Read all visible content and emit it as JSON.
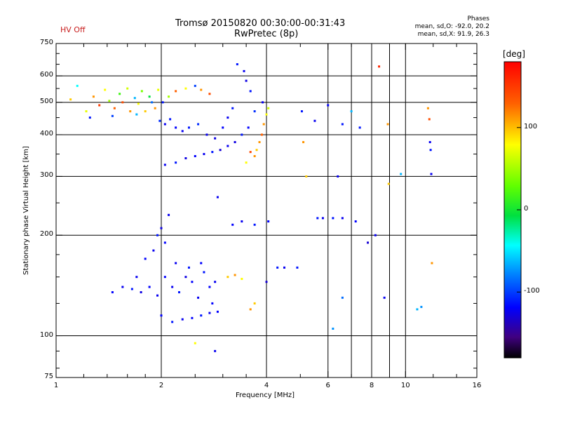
{
  "header": {
    "status": "HV Off",
    "status_color": "#c81e1e",
    "title_line1": "Tromsø 20150820 00:30:00-00:31:43",
    "title_line2": "RwPretec (8p)",
    "stats_title": "Phases",
    "stats_line1": "mean, sd,O: -92.0, 20.2",
    "stats_line2": "mean, sd,X:  91.9, 26.3"
  },
  "chart_data": {
    "type": "scatter",
    "xlabel": "Frequency [MHz]",
    "ylabel": "Stationary phase Virtual Height [km]",
    "x_scale": "log",
    "y_scale": "log",
    "xlim": [
      1,
      16
    ],
    "ylim": [
      75,
      750
    ],
    "x_ticks": [
      1,
      2,
      4,
      6,
      8,
      10,
      16
    ],
    "x_tick_labels": [
      "1",
      "2",
      "4",
      "6",
      "8",
      "10",
      "16"
    ],
    "y_ticks": [
      75,
      100,
      200,
      300,
      400,
      500,
      600,
      750
    ],
    "y_tick_labels": [
      "75",
      "100",
      "200",
      "300",
      "400",
      "500",
      "600",
      "750"
    ],
    "x_gridlines": [
      2,
      4,
      6,
      7,
      8,
      9,
      10
    ],
    "y_gridlines": [
      100,
      200,
      300,
      400,
      500,
      600
    ],
    "grid": true,
    "colorbar": {
      "label": "[deg]",
      "range": [
        -180,
        180
      ],
      "ticks": [
        100,
        0,
        -100
      ],
      "tick_labels": [
        "100",
        "0",
        "-100"
      ]
    },
    "points": [
      [
        1.1,
        510,
        110
      ],
      [
        1.15,
        560,
        -40
      ],
      [
        1.22,
        470,
        90
      ],
      [
        1.28,
        520,
        120
      ],
      [
        1.33,
        490,
        150
      ],
      [
        1.38,
        545,
        100
      ],
      [
        1.42,
        505,
        60
      ],
      [
        1.47,
        480,
        130
      ],
      [
        1.52,
        530,
        20
      ],
      [
        1.55,
        500,
        140
      ],
      [
        1.6,
        550,
        80
      ],
      [
        1.63,
        470,
        120
      ],
      [
        1.68,
        515,
        -60
      ],
      [
        1.72,
        495,
        100
      ],
      [
        1.76,
        540,
        40
      ],
      [
        1.8,
        470,
        110
      ],
      [
        1.85,
        520,
        0
      ],
      [
        1.88,
        500,
        -80
      ],
      [
        1.92,
        480,
        120
      ],
      [
        1.96,
        545,
        90
      ],
      [
        2.02,
        500,
        -100
      ],
      [
        2.1,
        520,
        60
      ],
      [
        2.2,
        540,
        130
      ],
      [
        2.35,
        550,
        100
      ],
      [
        2.5,
        560,
        -90
      ],
      [
        2.6,
        545,
        120
      ],
      [
        2.75,
        530,
        140
      ],
      [
        1.25,
        450,
        -100
      ],
      [
        1.45,
        455,
        -90
      ],
      [
        1.7,
        460,
        -60
      ],
      [
        1.98,
        440,
        -95
      ],
      [
        2.05,
        430,
        -110
      ],
      [
        2.12,
        445,
        -100
      ],
      [
        2.2,
        420,
        -105
      ],
      [
        2.3,
        410,
        -110
      ],
      [
        2.4,
        420,
        -100
      ],
      [
        2.55,
        430,
        -95
      ],
      [
        2.7,
        400,
        -110
      ],
      [
        2.85,
        390,
        -115
      ],
      [
        3.0,
        420,
        -105
      ],
      [
        3.1,
        450,
        -110
      ],
      [
        3.2,
        480,
        -100
      ],
      [
        2.05,
        325,
        -110
      ],
      [
        2.2,
        330,
        -100
      ],
      [
        2.35,
        340,
        -115
      ],
      [
        2.5,
        345,
        -105
      ],
      [
        2.65,
        350,
        -110
      ],
      [
        2.8,
        355,
        -100
      ],
      [
        2.95,
        360,
        -120
      ],
      [
        3.1,
        370,
        -110
      ],
      [
        3.25,
        380,
        -115
      ],
      [
        3.4,
        400,
        -100
      ],
      [
        3.55,
        420,
        -105
      ],
      [
        3.7,
        470,
        -95
      ],
      [
        3.9,
        500,
        -110
      ],
      [
        3.6,
        540,
        -100
      ],
      [
        3.5,
        580,
        -115
      ],
      [
        3.45,
        620,
        -110
      ],
      [
        3.3,
        650,
        -100
      ],
      [
        3.75,
        360,
        110
      ],
      [
        3.82,
        380,
        120
      ],
      [
        3.88,
        400,
        130
      ],
      [
        3.93,
        430,
        120
      ],
      [
        4.0,
        460,
        100
      ],
      [
        4.05,
        480,
        80
      ],
      [
        3.6,
        355,
        140
      ],
      [
        3.7,
        345,
        120
      ],
      [
        3.5,
        330,
        100
      ],
      [
        5.1,
        380,
        120
      ],
      [
        5.2,
        300,
        110
      ],
      [
        6.4,
        300,
        -110
      ],
      [
        8.4,
        640,
        160
      ],
      [
        8.9,
        430,
        120
      ],
      [
        8.95,
        285,
        110
      ],
      [
        9.7,
        305,
        -60
      ],
      [
        11.6,
        480,
        120
      ],
      [
        11.7,
        445,
        140
      ],
      [
        11.75,
        380,
        -110
      ],
      [
        11.8,
        360,
        -100
      ],
      [
        11.85,
        305,
        -110
      ],
      [
        11.9,
        165,
        120
      ],
      [
        5.05,
        470,
        -100
      ],
      [
        5.5,
        440,
        -110
      ],
      [
        6.0,
        490,
        -105
      ],
      [
        6.6,
        430,
        -100
      ],
      [
        7.0,
        470,
        -60
      ],
      [
        7.4,
        420,
        -100
      ],
      [
        7.8,
        190,
        -120
      ],
      [
        8.2,
        200,
        -110
      ],
      [
        8.7,
        130,
        -110
      ],
      [
        6.2,
        105,
        -70
      ],
      [
        6.6,
        130,
        -80
      ],
      [
        10.8,
        120,
        -60
      ],
      [
        11.1,
        122,
        -70
      ],
      [
        5.6,
        225,
        -100
      ],
      [
        5.8,
        225,
        -110
      ],
      [
        6.2,
        225,
        -100
      ],
      [
        6.6,
        225,
        -110
      ],
      [
        7.2,
        220,
        -105
      ],
      [
        2.9,
        260,
        -110
      ],
      [
        3.2,
        215,
        -105
      ],
      [
        3.4,
        220,
        -110
      ],
      [
        3.7,
        215,
        -100
      ],
      [
        4.05,
        220,
        -105
      ],
      [
        4.3,
        160,
        -100
      ],
      [
        4.5,
        160,
        -110
      ],
      [
        4.0,
        145,
        -120
      ],
      [
        4.9,
        160,
        -100
      ],
      [
        3.1,
        150,
        110
      ],
      [
        3.25,
        152,
        120
      ],
      [
        3.4,
        148,
        100
      ],
      [
        3.6,
        120,
        120
      ],
      [
        3.7,
        125,
        110
      ],
      [
        2.5,
        95,
        100
      ],
      [
        2.85,
        90,
        -110
      ],
      [
        1.45,
        135,
        -105
      ],
      [
        1.55,
        140,
        -110
      ],
      [
        1.65,
        138,
        -100
      ],
      [
        1.75,
        135,
        -115
      ],
      [
        1.85,
        140,
        -105
      ],
      [
        1.95,
        132,
        -110
      ],
      [
        2.05,
        150,
        -105
      ],
      [
        2.15,
        140,
        -110
      ],
      [
        2.25,
        135,
        -100
      ],
      [
        2.35,
        150,
        -115
      ],
      [
        2.45,
        145,
        -105
      ],
      [
        2.55,
        130,
        -110
      ],
      [
        2.65,
        155,
        -100
      ],
      [
        2.75,
        140,
        -105
      ],
      [
        2.85,
        145,
        -110
      ],
      [
        1.8,
        170,
        -105
      ],
      [
        1.9,
        180,
        -110
      ],
      [
        1.95,
        200,
        -100
      ],
      [
        2.0,
        210,
        -115
      ],
      [
        2.05,
        190,
        -105
      ],
      [
        2.1,
        230,
        -110
      ],
      [
        2.0,
        115,
        -105
      ],
      [
        2.15,
        110,
        -100
      ],
      [
        2.3,
        112,
        -110
      ],
      [
        2.45,
        113,
        -105
      ],
      [
        2.6,
        115,
        -100
      ],
      [
        2.75,
        117,
        -110
      ],
      [
        2.9,
        118,
        -105
      ],
      [
        2.2,
        165,
        -110
      ],
      [
        2.4,
        160,
        -100
      ],
      [
        2.6,
        165,
        -105
      ],
      [
        1.7,
        150,
        -110
      ],
      [
        2.8,
        125,
        -105
      ]
    ]
  }
}
